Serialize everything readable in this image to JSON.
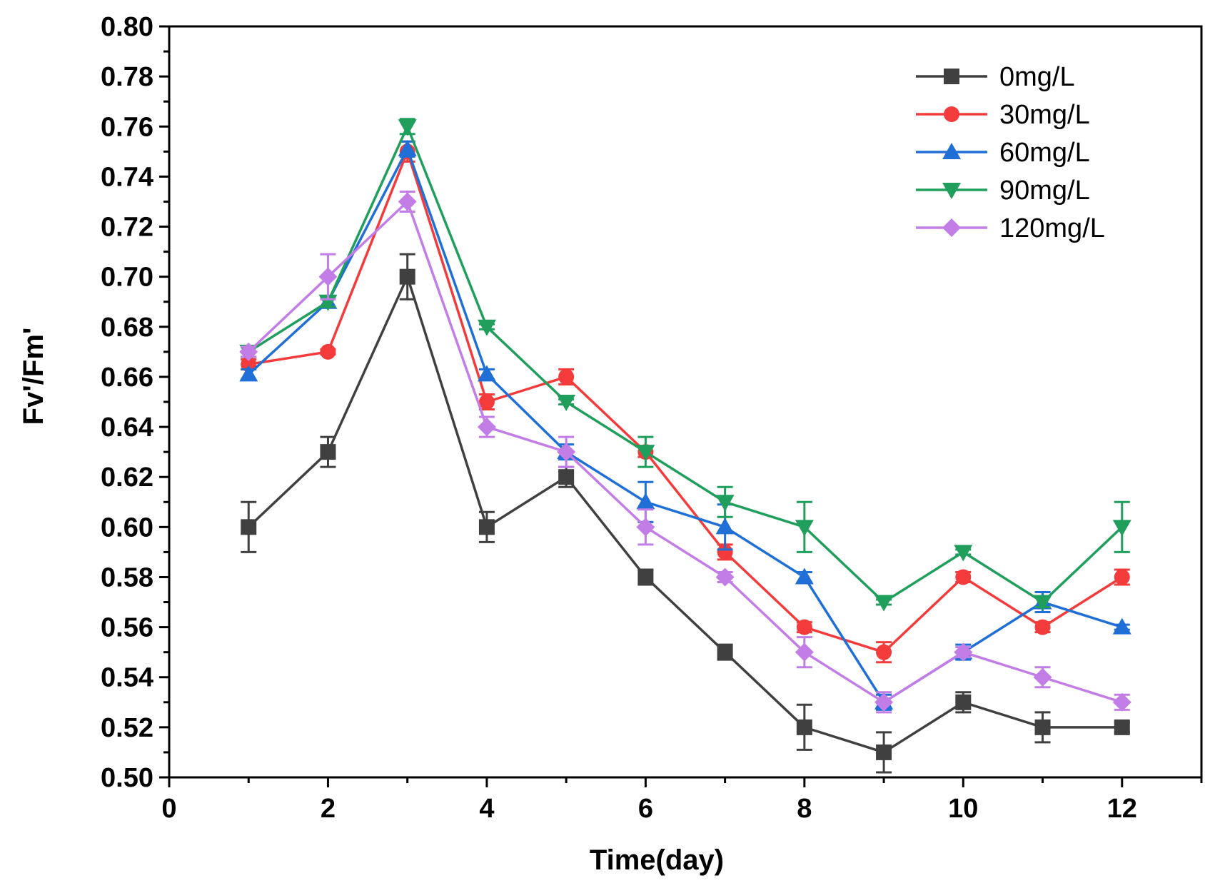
{
  "chart_data": {
    "type": "line",
    "title": "",
    "xlabel": "Time(day)",
    "ylabel": "Fv'/Fm'",
    "xlim": [
      0,
      13
    ],
    "ylim": [
      0.5,
      0.8
    ],
    "x_ticks": [
      0,
      2,
      4,
      6,
      8,
      10,
      12
    ],
    "y_ticks": [
      0.5,
      0.52,
      0.54,
      0.56,
      0.58,
      0.6,
      0.62,
      0.64,
      0.66,
      0.68,
      0.7,
      0.72,
      0.74,
      0.76,
      0.78,
      0.8
    ],
    "x": [
      1,
      2,
      3,
      4,
      5,
      6,
      7,
      8,
      9,
      10,
      11,
      12
    ],
    "legend_position": "top-right",
    "series": [
      {
        "name": "0mg/L",
        "color": "#404040",
        "marker": "square",
        "values": [
          0.6,
          0.63,
          0.7,
          0.6,
          0.62,
          0.58,
          0.55,
          0.52,
          0.51,
          0.53,
          0.52,
          0.52
        ],
        "errors": [
          0.01,
          0.006,
          0.009,
          0.006,
          0.004,
          0.003,
          0.003,
          0.009,
          0.008,
          0.004,
          0.006,
          0.002
        ]
      },
      {
        "name": "30mg/L",
        "color": "#f43b3b",
        "marker": "circle",
        "values": [
          0.665,
          0.67,
          0.75,
          0.65,
          0.66,
          0.63,
          0.59,
          0.56,
          0.55,
          0.58,
          0.56,
          0.58
        ],
        "errors": [
          0.002,
          0.001,
          0.004,
          0.003,
          0.003,
          0.002,
          0.003,
          0.002,
          0.004,
          0.002,
          0.002,
          0.003
        ]
      },
      {
        "name": "60mg/L",
        "color": "#1f6fd6",
        "marker": "triangle-up",
        "values": [
          0.661,
          0.69,
          0.751,
          0.661,
          0.63,
          0.61,
          0.6,
          0.58,
          0.53,
          0.55,
          0.57,
          0.56
        ],
        "errors": [
          0.002,
          0.002,
          0.003,
          0.002,
          0.003,
          0.008,
          0.009,
          0.002,
          0.003,
          0.003,
          0.004,
          0.001
        ]
      },
      {
        "name": "90mg/L",
        "color": "#1f9e5c",
        "marker": "triangle-down",
        "values": [
          0.67,
          0.69,
          0.76,
          0.68,
          0.65,
          0.63,
          0.61,
          0.6,
          0.57,
          0.59,
          0.57,
          0.6
        ],
        "errors": [
          0.002,
          0.002,
          0.003,
          0.001,
          0.001,
          0.006,
          0.006,
          0.01,
          0.001,
          0.001,
          0.002,
          0.01
        ]
      },
      {
        "name": "120mg/L",
        "color": "#c27ee6",
        "marker": "diamond",
        "values": [
          0.67,
          0.7,
          0.73,
          0.64,
          0.63,
          0.6,
          0.58,
          0.55,
          0.53,
          0.55,
          0.54,
          0.53
        ],
        "errors": [
          0.002,
          0.009,
          0.004,
          0.004,
          0.006,
          0.007,
          0.002,
          0.006,
          0.004,
          0.002,
          0.004,
          0.003
        ]
      }
    ]
  }
}
